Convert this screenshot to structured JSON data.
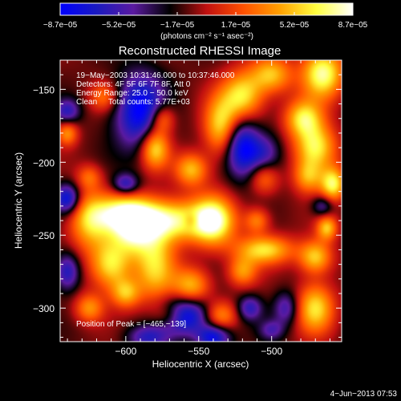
{
  "chart_data": {
    "type": "heatmap",
    "title": "Reconstructed RHESSI Image",
    "xlabel": "Heliocentric X (arcsec)",
    "ylabel": "Heliocentric Y (arcsec)",
    "xlim": [
      -645,
      -452
    ],
    "ylim": [
      -323,
      -130
    ],
    "x_ticks": [
      {
        "value": -600,
        "label": "−600"
      },
      {
        "value": -550,
        "label": "−550"
      },
      {
        "value": -500,
        "label": "−500"
      }
    ],
    "y_ticks": [
      {
        "value": -150,
        "label": "−150"
      },
      {
        "value": -200,
        "label": "−200"
      },
      {
        "value": -250,
        "label": "−250"
      },
      {
        "value": -300,
        "label": "−300"
      }
    ],
    "colorbar": {
      "min": -8.7e-05,
      "max": 8.7e-05,
      "ticks": [
        "−8.7e−05",
        "−5.2e−05",
        "−1.7e−05",
        "1.7e−05",
        "5.2e−05",
        "8.7e−05"
      ],
      "unit_label": "(photons cm⁻² s⁻¹ asec⁻²)",
      "colors": [
        "#0000ff",
        "#1a1ac0",
        "#5a1aa0",
        "#000000",
        "#c01010",
        "#ff5000",
        "#ffa000",
        "#ffff40",
        "#ffffff"
      ]
    },
    "annotations": {
      "line1": "19−May−2003 10:31:46.000 to 10:37:46.000",
      "line2": "Detectors: 4F 5F 6F 7F 8F, Att 0",
      "line3": "Energy Range: 25.0 − 50.0 keV",
      "line4": "Clean     Total counts: 5.77E+03",
      "peak": "Position of Peak = [−465,−139]"
    },
    "sources": [
      {
        "x": -600,
        "y": -235,
        "sx": 14,
        "sy": 9,
        "a": 0.9
      },
      {
        "x": -570,
        "y": -240,
        "sx": 22,
        "sy": 10,
        "a": 0.95
      },
      {
        "x": -540,
        "y": -240,
        "sx": 10,
        "sy": 12,
        "a": 0.9
      },
      {
        "x": -625,
        "y": -240,
        "sx": 10,
        "sy": 14,
        "a": 0.7
      },
      {
        "x": -595,
        "y": -250,
        "sx": 10,
        "sy": 10,
        "a": 0.6
      },
      {
        "x": -610,
        "y": -270,
        "sx": 10,
        "sy": 12,
        "a": 0.85
      },
      {
        "x": -580,
        "y": -270,
        "sx": 10,
        "sy": 18,
        "a": 0.75
      },
      {
        "x": -555,
        "y": -285,
        "sx": 9,
        "sy": 9,
        "a": 0.7
      },
      {
        "x": -600,
        "y": -290,
        "sx": 7,
        "sy": 7,
        "a": 0.6
      },
      {
        "x": -625,
        "y": -300,
        "sx": 7,
        "sy": 7,
        "a": 0.55
      },
      {
        "x": -570,
        "y": -305,
        "sx": 8,
        "sy": 6,
        "a": 0.45
      },
      {
        "x": -580,
        "y": -190,
        "sx": 7,
        "sy": 10,
        "a": 0.9
      },
      {
        "x": -575,
        "y": -170,
        "sx": 6,
        "sy": 7,
        "a": 0.6
      },
      {
        "x": -555,
        "y": -205,
        "sx": 8,
        "sy": 8,
        "a": 0.7
      },
      {
        "x": -535,
        "y": -175,
        "sx": 8,
        "sy": 14,
        "a": 0.75
      },
      {
        "x": -520,
        "y": -155,
        "sx": 10,
        "sy": 12,
        "a": 0.85
      },
      {
        "x": -500,
        "y": -140,
        "sx": 10,
        "sy": 9,
        "a": 0.7
      },
      {
        "x": -465,
        "y": -139,
        "sx": 10,
        "sy": 12,
        "a": 1.0
      },
      {
        "x": -478,
        "y": -170,
        "sx": 9,
        "sy": 9,
        "a": 0.8
      },
      {
        "x": -470,
        "y": -190,
        "sx": 10,
        "sy": 11,
        "a": 0.9
      },
      {
        "x": -475,
        "y": -210,
        "sx": 7,
        "sy": 8,
        "a": 0.6
      },
      {
        "x": -458,
        "y": -215,
        "sx": 6,
        "sy": 8,
        "a": 0.9
      },
      {
        "x": -505,
        "y": -210,
        "sx": 7,
        "sy": 8,
        "a": 0.5
      },
      {
        "x": -510,
        "y": -240,
        "sx": 6,
        "sy": 6,
        "a": 0.5
      },
      {
        "x": -505,
        "y": -260,
        "sx": 14,
        "sy": 7,
        "a": 0.8
      },
      {
        "x": -470,
        "y": -265,
        "sx": 8,
        "sy": 8,
        "a": 0.75
      },
      {
        "x": -520,
        "y": -275,
        "sx": 7,
        "sy": 7,
        "a": 0.55
      },
      {
        "x": -535,
        "y": -305,
        "sx": 8,
        "sy": 7,
        "a": 0.55
      },
      {
        "x": -470,
        "y": -300,
        "sx": 9,
        "sy": 12,
        "a": 0.8
      },
      {
        "x": -462,
        "y": -245,
        "sx": 5,
        "sy": 6,
        "a": 0.7
      },
      {
        "x": -640,
        "y": -180,
        "sx": 5,
        "sy": 6,
        "a": 0.55
      },
      {
        "x": -615,
        "y": -155,
        "sx": 7,
        "sy": 7,
        "a": 0.45
      },
      {
        "x": -625,
        "y": -210,
        "sx": 6,
        "sy": 6,
        "a": 0.4
      },
      {
        "x": -600,
        "y": -215,
        "sx": 6,
        "sy": 5,
        "a": -0.6
      },
      {
        "x": -590,
        "y": -165,
        "sx": 12,
        "sy": 18,
        "a": -0.9
      },
      {
        "x": -640,
        "y": -165,
        "sx": 6,
        "sy": 6,
        "a": -0.55
      },
      {
        "x": -640,
        "y": -225,
        "sx": 6,
        "sy": 7,
        "a": -0.8
      },
      {
        "x": -555,
        "y": -240,
        "sx": 4,
        "sy": 4,
        "a": -0.3
      },
      {
        "x": -520,
        "y": -190,
        "sx": 8,
        "sy": 14,
        "a": -0.85
      },
      {
        "x": -505,
        "y": -195,
        "sx": 8,
        "sy": 10,
        "a": -0.55
      },
      {
        "x": -560,
        "y": -305,
        "sx": 12,
        "sy": 9,
        "a": -0.95
      },
      {
        "x": -540,
        "y": -320,
        "sx": 8,
        "sy": 6,
        "a": -0.8
      },
      {
        "x": -515,
        "y": -300,
        "sx": 6,
        "sy": 6,
        "a": -0.55
      },
      {
        "x": -490,
        "y": -300,
        "sx": 6,
        "sy": 8,
        "a": -0.5
      },
      {
        "x": -640,
        "y": -275,
        "sx": 6,
        "sy": 9,
        "a": -0.65
      },
      {
        "x": -585,
        "y": -320,
        "sx": 10,
        "sy": 6,
        "a": -0.55
      },
      {
        "x": -465,
        "y": -230,
        "sx": 5,
        "sy": 5,
        "a": -0.45
      },
      {
        "x": -500,
        "y": -315,
        "sx": 6,
        "sy": 5,
        "a": -0.4
      }
    ]
  },
  "footer": {
    "timestamp": "4−Jun−2013 07:53"
  }
}
